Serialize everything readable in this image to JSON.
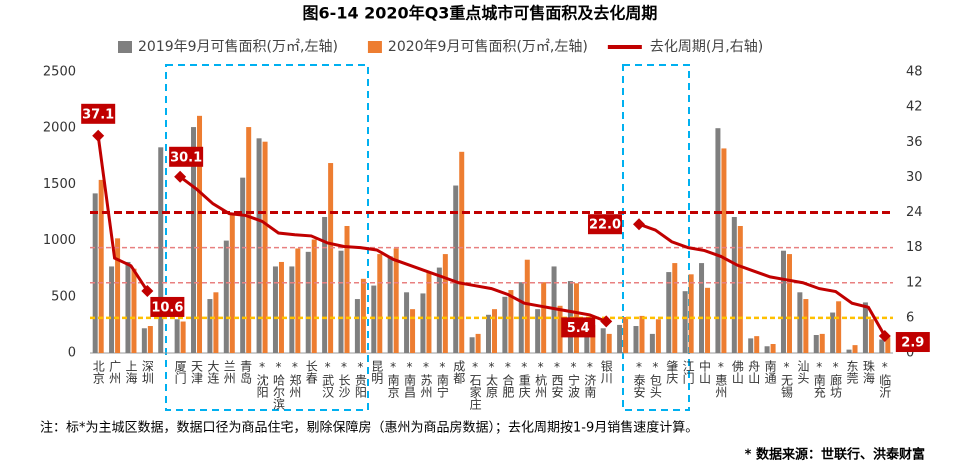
{
  "chart_data": {
    "type": "bar-line",
    "title": "图6-14  2020年Q3重点城市可售面积及去化周期",
    "categories": [
      "北京",
      "广州",
      "上海",
      "深圳",
      null,
      "厦门",
      "天津",
      "大连",
      "兰州",
      "青岛",
      "*沈阳",
      "*哈尔滨",
      "*郑州",
      "长春",
      "*武汉",
      "*长沙",
      "*贵阳",
      "昆明",
      "*南京",
      "*南昌",
      "*苏州",
      "*南宁",
      "成都",
      "*石家庄",
      "*太原",
      "*合肥",
      "*重庆",
      "*杭州",
      "*西安",
      "*宁波",
      "*济南",
      "银川",
      null,
      "*泰安",
      "*包头",
      "肇庆",
      "江门",
      "中山",
      "*惠州",
      "佛山",
      "舟山",
      "南通",
      "*无锡",
      "汕头",
      "*南充",
      "*廊坊",
      "东莞",
      "珠海",
      "*临沂"
    ],
    "series": [
      {
        "name": "2019年9月可售面积(万㎡,左轴)",
        "color": "#7f7f7f",
        "kind": "bar",
        "values": [
          1420,
          770,
          810,
          220,
          1830,
          300,
          2010,
          480,
          1000,
          1560,
          1910,
          770,
          770,
          900,
          1210,
          910,
          480,
          600,
          860,
          540,
          530,
          760,
          1490,
          140,
          340,
          500,
          630,
          390,
          770,
          640,
          290,
          220,
          250,
          240,
          170,
          720,
          550,
          800,
          2000,
          1210,
          130,
          60,
          910,
          540,
          160,
          360,
          30,
          450,
          120
        ]
      },
      {
        "name": "2020年9月可售面积(万㎡,左轴)",
        "color": "#ed7d31",
        "kind": "bar",
        "values": [
          1540,
          1020,
          750,
          240,
          null,
          280,
          2110,
          540,
          1230,
          2010,
          1880,
          810,
          930,
          1010,
          1690,
          1130,
          660,
          880,
          930,
          390,
          720,
          880,
          1790,
          170,
          390,
          560,
          830,
          630,
          420,
          620,
          250,
          170,
          320,
          330,
          300,
          800,
          700,
          580,
          1820,
          1130,
          150,
          80,
          880,
          480,
          170,
          460,
          70,
          300,
          140
        ]
      },
      {
        "name": "去化周期(月,右轴)",
        "color": "#c00000",
        "kind": "line",
        "axis": "y2",
        "values": [
          37.1,
          16.2,
          14.9,
          10.6,
          null,
          30.1,
          28,
          25.5,
          23.8,
          23.5,
          22.5,
          20.5,
          20.2,
          20,
          18.8,
          18.2,
          18,
          17.6,
          16,
          15,
          14,
          13,
          12,
          11.5,
          11,
          10,
          8.5,
          8,
          7.5,
          7,
          6.5,
          5.4,
          null,
          22,
          21,
          19,
          18,
          17.5,
          16.5,
          15,
          14,
          13,
          12.5,
          12,
          11,
          10.5,
          8.5,
          7.8,
          2.9
        ],
        "value_labels": [
          "37.1",
          null,
          null,
          "10.6",
          null,
          "30.1",
          null,
          null,
          null,
          null,
          null,
          null,
          null,
          null,
          null,
          null,
          null,
          null,
          null,
          null,
          null,
          null,
          null,
          null,
          null,
          null,
          null,
          null,
          null,
          null,
          null,
          "5.4",
          null,
          "22.0",
          null,
          null,
          null,
          null,
          null,
          null,
          null,
          null,
          null,
          null,
          null,
          null,
          null,
          null,
          "2.9"
        ]
      }
    ],
    "reference_lines": [
      {
        "value": 24,
        "color": "#c00000"
      },
      {
        "value": 18,
        "color": "#e88080"
      },
      {
        "value": 12,
        "color": "#e88080"
      },
      {
        "value": 6,
        "color": "#ffc000"
      }
    ],
    "ylim": [
      0,
      2500
    ],
    "yticks": [
      0,
      500,
      1000,
      1500,
      2000,
      2500
    ],
    "y2lim": [
      0,
      48
    ],
    "y2ticks": [
      0,
      6,
      12,
      18,
      24,
      30,
      36,
      42,
      48
    ],
    "note": "注：标*为主城区数据，数据口径为商品住宅，剔除保障房（惠州为商品房数据）；去化周期按1-9月销售速度计算。",
    "source": "* 数据来源：世联行、洪泰财富"
  }
}
